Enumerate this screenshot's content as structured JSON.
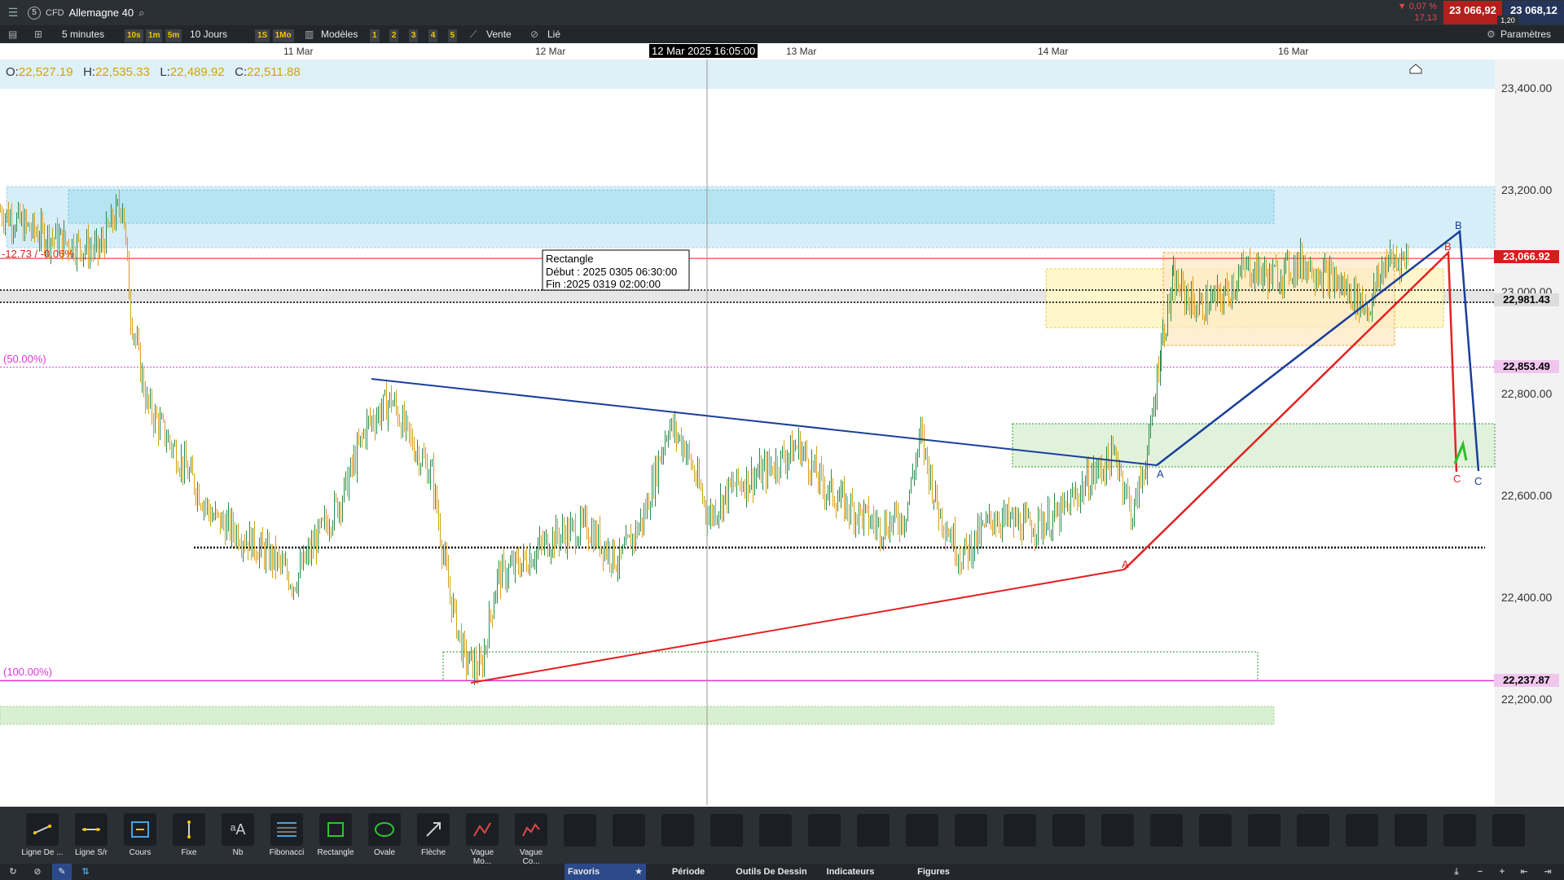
{
  "header": {
    "menu_icon": "hamburger-icon",
    "account_number": "5",
    "instrument_type": "CFD",
    "symbol": "Allemagne 40",
    "change_pct": "▼ 0,07 %",
    "change_abs": "17,13",
    "bid": "23 066,92",
    "ask": "23 068,12",
    "spread": "1,20"
  },
  "toolbar": {
    "interval": "5 minutes",
    "interval_chips": [
      "10s",
      "1m",
      "5m"
    ],
    "range": "10 Jours",
    "range_chips": [
      "1S",
      "1Mo"
    ],
    "templates": "Modèles",
    "slot_chips": [
      "1",
      "2",
      "3",
      "4",
      "5"
    ],
    "sell": "Vente",
    "linked": "Lié",
    "settings": "Paramètres"
  },
  "date_axis": {
    "labels": [
      "11 Mar",
      "12 Mar",
      "13 Mar",
      "14 Mar",
      "16 Mar"
    ],
    "cursor_date": "12 Mar 2025 16:05:00"
  },
  "ohlc": {
    "o_label": "O:",
    "o": "22,527.19",
    "h_label": "H:",
    "h": "22,535.33",
    "l_label": "L:",
    "l": "22,489.92",
    "c_label": "C:",
    "c": "22,511.88"
  },
  "chart": {
    "price_axis": [
      "23,400.00",
      "23,200.00",
      "23,000.00",
      "22,800.00",
      "22,600.00",
      "22,400.00",
      "22,200.00"
    ],
    "current_price": "23,066.92",
    "level_black": "22,981.43",
    "level_50": "22,853.49",
    "level_100": "22,237.87",
    "annotation_change": "-12.73 / -0.06%",
    "fib_50": "(50.00%)",
    "fib_100": "(100.00%)",
    "rectangle_tooltip": {
      "title": "Rectangle",
      "start": "Début : 2025 0305 06:30:00",
      "end": "Fin :2025 0319 02:00:00"
    },
    "wave_labels_red": [
      "A",
      "B",
      "C"
    ],
    "wave_labels_blue": [
      "A",
      "B",
      "C"
    ],
    "colors": {
      "red": "#e32222",
      "blue": "#1a3f9a",
      "magenta": "#e033d8",
      "green": "#27a827"
    }
  },
  "tools": [
    {
      "label": "Ligne De ...",
      "icon": "trend-line-icon"
    },
    {
      "label": "Ligne S/r",
      "icon": "horizontal-line-icon"
    },
    {
      "label": "Cours",
      "icon": "price-line-icon"
    },
    {
      "label": "Fixe",
      "icon": "vertical-line-icon"
    },
    {
      "label": "Nb",
      "icon": "text-icon"
    },
    {
      "label": "Fibonacci",
      "icon": "fibonacci-icon"
    },
    {
      "label": "Rectangle",
      "icon": "rectangle-icon"
    },
    {
      "label": "Ovale",
      "icon": "oval-icon"
    },
    {
      "label": "Flèche",
      "icon": "arrow-icon"
    },
    {
      "label": "Vague Mo...",
      "icon": "wave-monthly-icon"
    },
    {
      "label": "Vague Co...",
      "icon": "wave-corrective-icon"
    }
  ],
  "bottom_nav": {
    "favorites": "Favoris",
    "period": "Période",
    "drawing_tools": "Outils De Dessin",
    "indicators": "Indicateurs",
    "figures": "Figures"
  }
}
